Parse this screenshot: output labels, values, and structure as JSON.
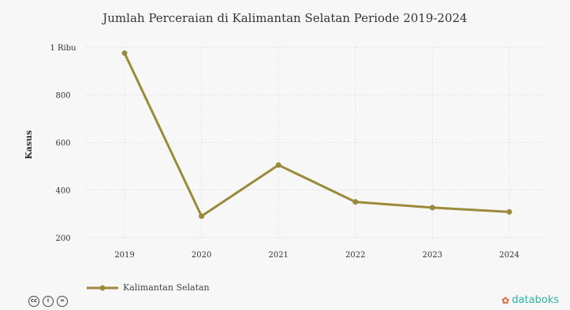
{
  "chart_data": {
    "type": "line",
    "title": "Jumlah Perceraian di Kalimantan Selatan Periode 2019-2024",
    "xlabel": "",
    "ylabel": "Kasus",
    "categories": [
      "2019",
      "2020",
      "2021",
      "2022",
      "2023",
      "2024"
    ],
    "ylim": [
      200,
      1000
    ],
    "yticks": [
      {
        "value": 1000,
        "label": "1 Ribu"
      },
      {
        "value": 800,
        "label": "800"
      },
      {
        "value": 600,
        "label": "600"
      },
      {
        "value": 400,
        "label": "400"
      },
      {
        "value": 200,
        "label": "200"
      }
    ],
    "series": [
      {
        "name": "Kalimantan Selatan",
        "values": [
          975,
          290,
          505,
          350,
          326,
          308
        ],
        "color": "#9a8a3a"
      }
    ],
    "grid": true,
    "legend": "bottom-left"
  },
  "footer": {
    "cc_icons": [
      {
        "icon": "cc-icon",
        "text": "cc"
      },
      {
        "icon": "by-icon",
        "text": "i"
      },
      {
        "icon": "nd-icon",
        "text": "="
      }
    ],
    "brand": "databoks",
    "brand_icon": "databoks-logo-icon"
  }
}
